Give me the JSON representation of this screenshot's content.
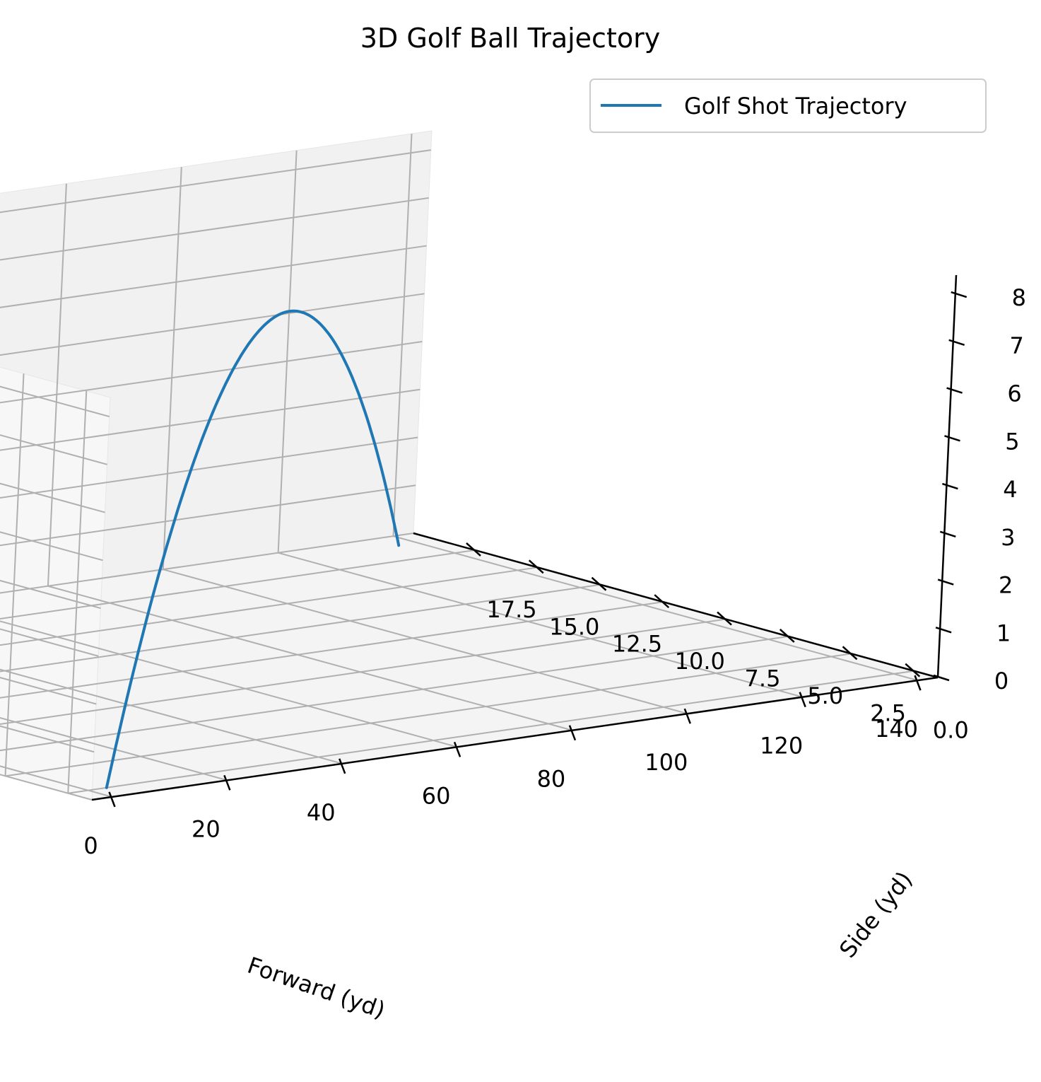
{
  "chart_data": {
    "type": "line",
    "projection": "3d",
    "title": "3D Golf Ball Trajectory",
    "xlabel": "Forward (yd)",
    "ylabel": "Side (yd)",
    "zlabel": "",
    "xlim": [
      -3.5,
      143.5
    ],
    "ylim": [
      -0.95,
      19.95
    ],
    "zlim": [
      0,
      8.4
    ],
    "x_ticks": [
      0,
      20,
      40,
      60,
      80,
      100,
      120,
      140
    ],
    "x_tick_labels": [
      "0",
      "20",
      "40",
      "60",
      "80",
      "100",
      "120",
      "140"
    ],
    "y_ticks": [
      0.0,
      2.5,
      5.0,
      7.5,
      10.0,
      12.5,
      15.0,
      17.5
    ],
    "y_tick_labels": [
      "0.0",
      "2.5",
      "5.0",
      "7.5",
      "10.0",
      "12.5",
      "15.0",
      "17.5"
    ],
    "z_ticks": [
      0,
      1,
      2,
      3,
      4,
      5,
      6,
      7,
      8
    ],
    "z_tick_labels": [
      "0",
      "1",
      "2",
      "3",
      "4",
      "5",
      "6",
      "7",
      "8"
    ],
    "grid": true,
    "legend_position": "top-right",
    "colors": {
      "series": "#1f77b4",
      "pane_left": "#f7f7f7",
      "pane_back": "#f1f1f1",
      "pane_floor": "#f4f4f4",
      "grid": "#b0b0b0"
    },
    "series": [
      {
        "name": "Golf Shot Trajectory",
        "x_start": 3.2,
        "x_end": 136.8,
        "y_start": 0.0,
        "y_end": 19.0,
        "peak_height": 7.2,
        "path": "parabolic arc, height 0 at both ends, sideways drift increasing with distance"
      }
    ]
  }
}
